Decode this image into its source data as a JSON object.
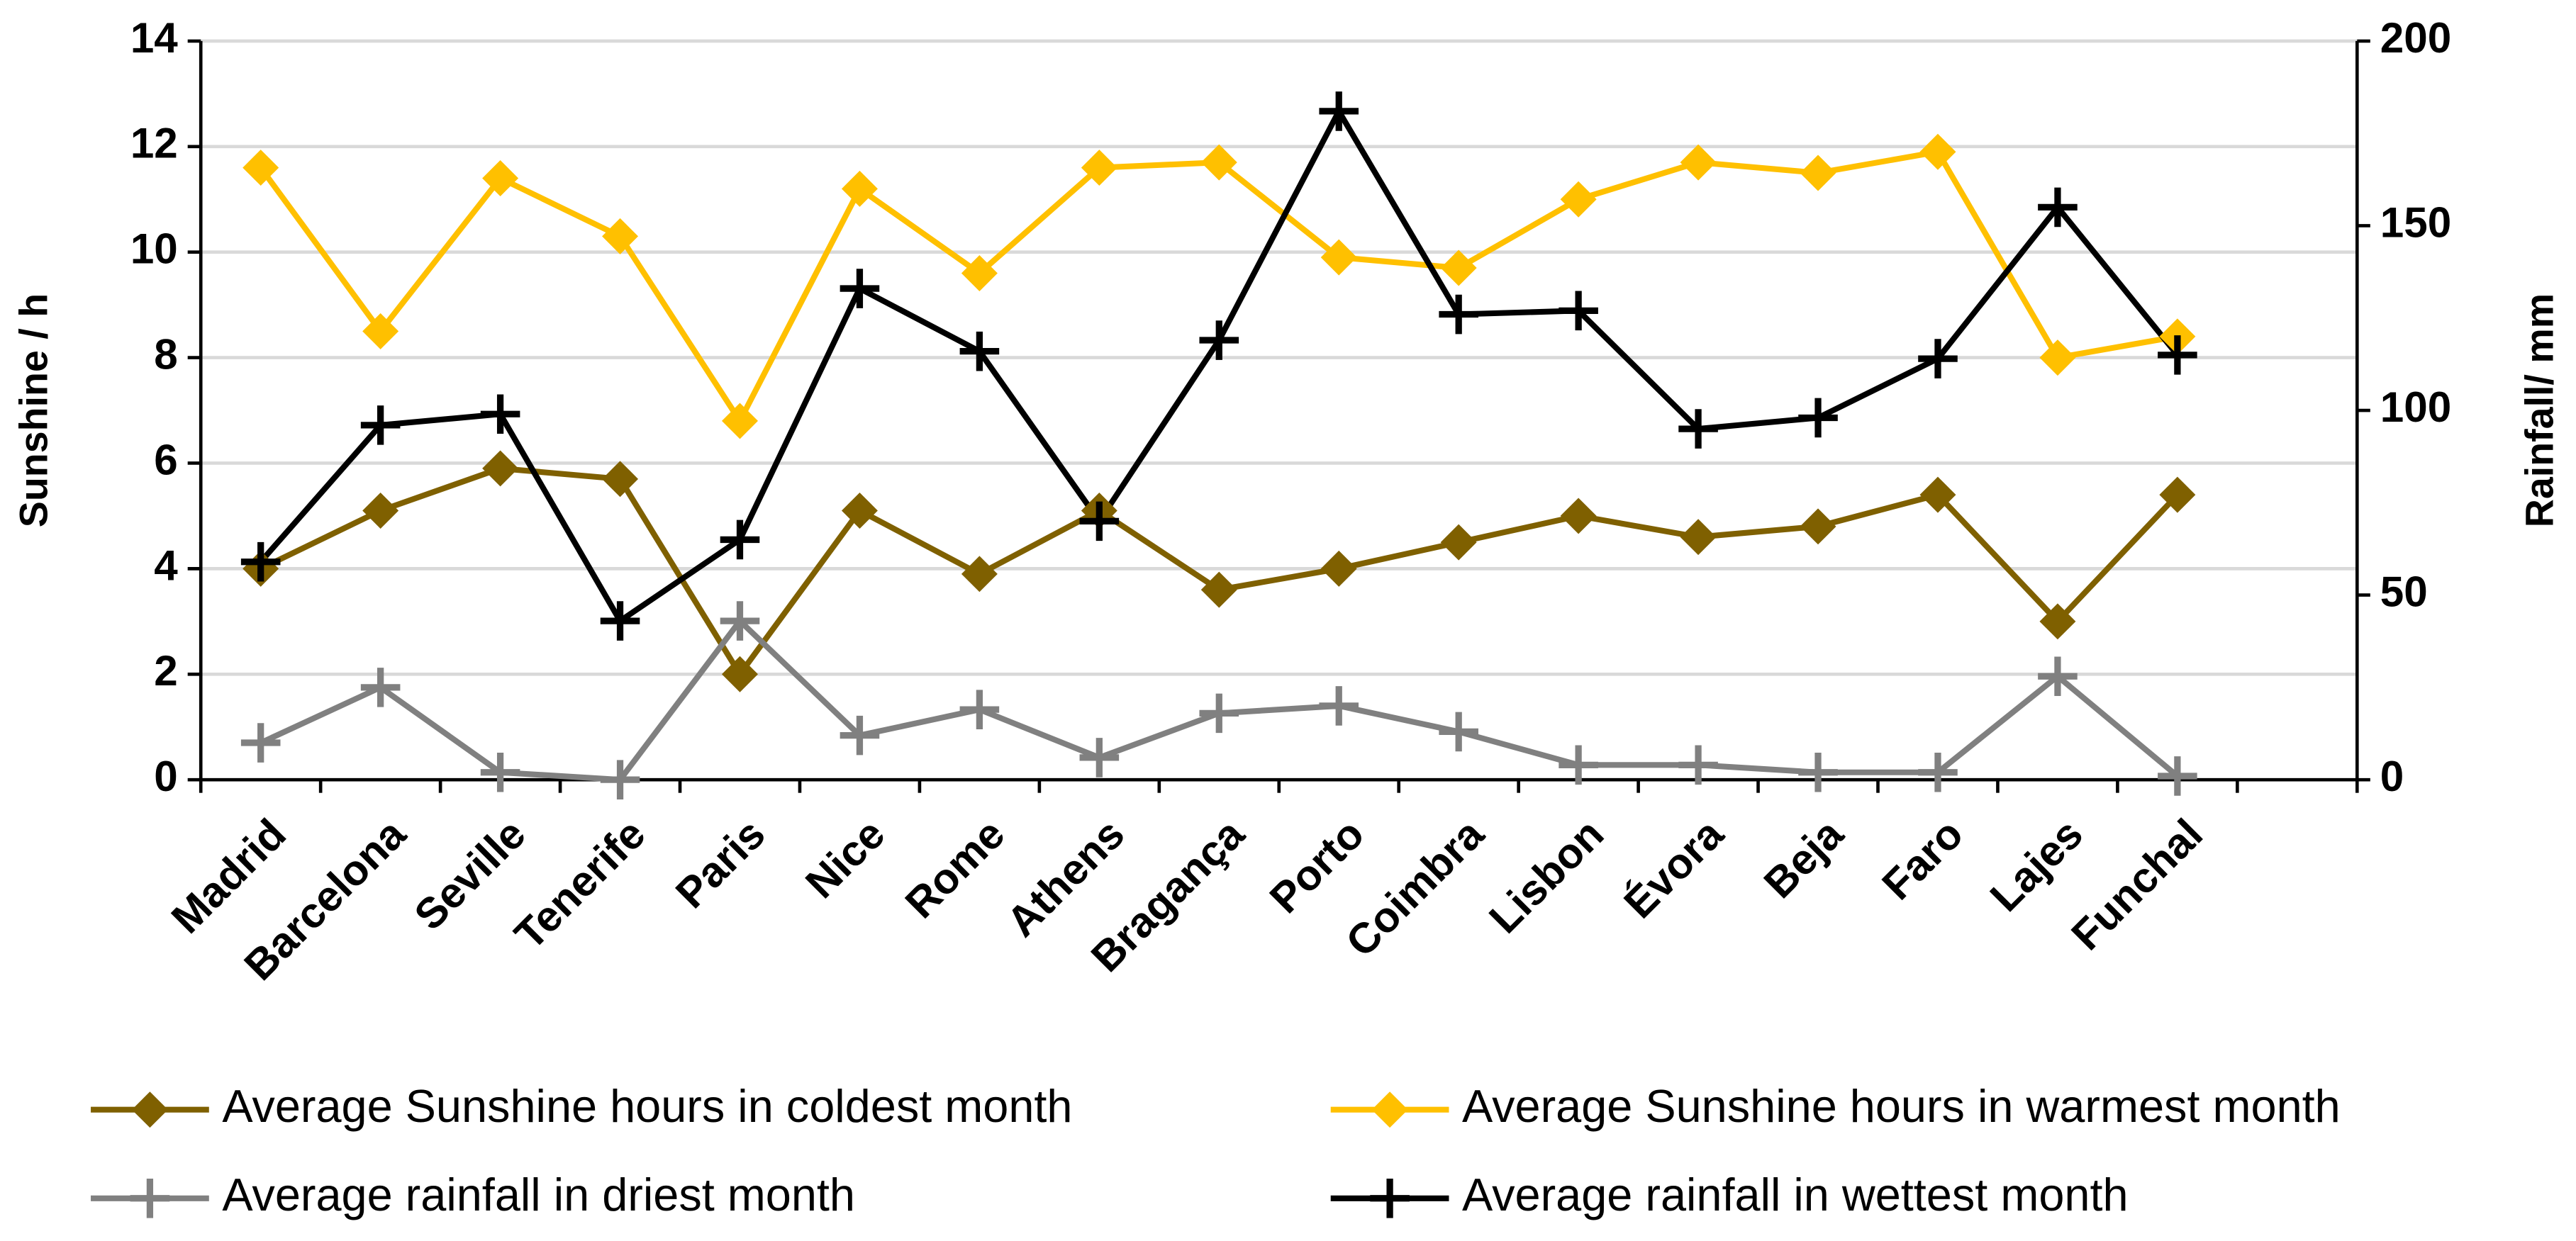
{
  "chart_data": {
    "type": "line",
    "categories": [
      "Madrid",
      "Barcelona",
      "Seville",
      "Tenerife",
      "Paris",
      "Nice",
      "Rome",
      "Athens",
      "Bragança",
      "Porto",
      "Coimbra",
      "Lisbon",
      "Évora",
      "Beja",
      "Faro",
      "Lajes",
      "Funchal",
      null
    ],
    "series": [
      {
        "name": "Average Sunshine hours in coldest month",
        "color": "#7f6000",
        "marker": "diamond",
        "axis": "y",
        "values": [
          4.0,
          5.1,
          5.9,
          5.7,
          2.0,
          5.1,
          3.9,
          5.1,
          3.6,
          4.0,
          4.5,
          5.0,
          4.6,
          4.8,
          5.4,
          3.0,
          5.4,
          null
        ]
      },
      {
        "name": "Average Sunshine hours in warmest month",
        "color": "#ffc000",
        "marker": "diamond",
        "axis": "y",
        "values": [
          11.6,
          8.5,
          11.4,
          10.3,
          6.8,
          11.2,
          9.6,
          11.6,
          11.7,
          9.9,
          9.7,
          11.0,
          11.7,
          11.5,
          11.9,
          8.0,
          8.4,
          null
        ]
      },
      {
        "name": "Average rainfall in driest month",
        "color": "#808080",
        "marker": "plus",
        "axis": "y2",
        "values": [
          10,
          25,
          2,
          0,
          43,
          12,
          19,
          6,
          18,
          20,
          13,
          4,
          4,
          2,
          2,
          28,
          1,
          null
        ]
      },
      {
        "name": "Average rainfall in wettest month",
        "color": "#000000",
        "marker": "plus",
        "axis": "y2",
        "values": [
          59,
          96,
          99,
          43,
          65,
          133,
          116,
          70,
          119,
          181,
          126,
          127,
          95,
          98,
          114,
          155,
          115,
          null
        ]
      }
    ],
    "ylabel": "Sunshine / h",
    "y2label": "Rainfall/ mm",
    "ylim": [
      0,
      14
    ],
    "yticks": [
      0,
      2,
      4,
      6,
      8,
      10,
      12,
      14
    ],
    "y2lim": [
      0,
      200
    ],
    "y2ticks": [
      0,
      50,
      100,
      150,
      200
    ],
    "grid": true,
    "legend": "bottom"
  }
}
